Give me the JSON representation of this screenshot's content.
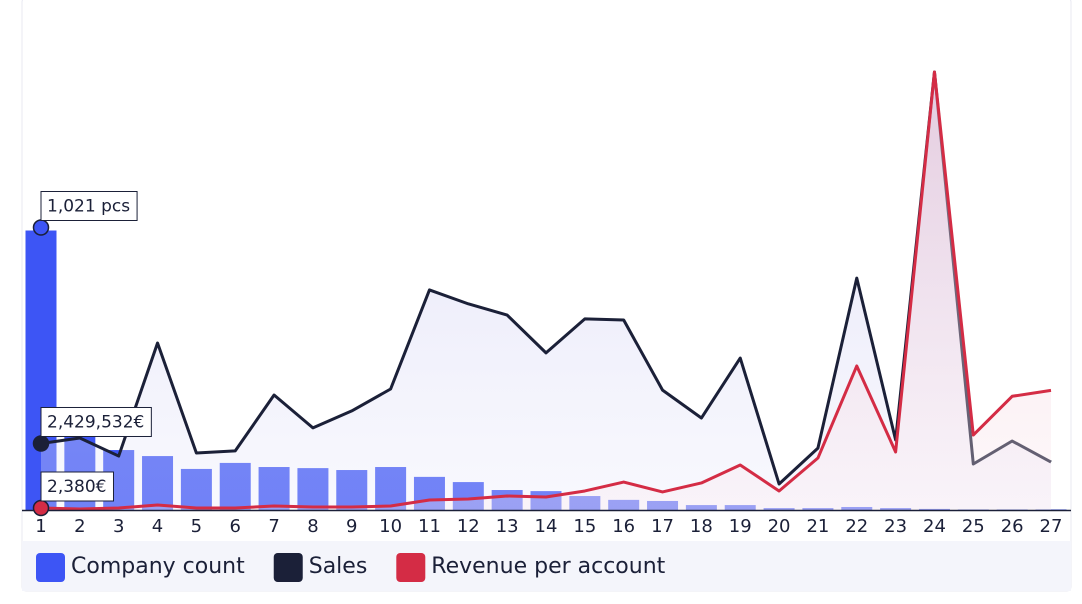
{
  "chart_data": {
    "type": "combo",
    "categories": [
      "1",
      "2",
      "3",
      "4",
      "5",
      "6",
      "7",
      "8",
      "9",
      "10",
      "11",
      "12",
      "13",
      "14",
      "15",
      "16",
      "17",
      "18",
      "19",
      "20",
      "21",
      "22",
      "23",
      "24",
      "25",
      "26",
      "27"
    ],
    "ylim": [
      0,
      1600
    ],
    "y2lim": [
      0,
      16000000
    ],
    "y3lim": [
      0,
      520000
    ],
    "legend": "bottom-left",
    "series": [
      {
        "name": "Company count",
        "type": "bar",
        "axis": "y",
        "color": "#3d55f5",
        "values": [
          1021,
          267,
          219,
          197,
          150,
          172,
          157,
          153,
          146,
          157,
          121,
          102,
          73,
          69,
          51,
          37,
          33,
          18,
          18,
          7,
          7,
          11,
          7,
          4,
          2,
          2,
          2
        ],
        "value_labels": [
          "1,021 pcs",
          null,
          null,
          null,
          null,
          null,
          null,
          null,
          null,
          null,
          null,
          null,
          null,
          null,
          null,
          null,
          null,
          null,
          null,
          null,
          null,
          null,
          null,
          null,
          null,
          null,
          null
        ]
      },
      {
        "name": "Sales",
        "type": "line",
        "axis": "y2",
        "color": "#1b2038",
        "values": [
          2429532,
          2630000,
          1970000,
          6100000,
          2080000,
          2160000,
          4200000,
          3000000,
          3620000,
          4420000,
          8040000,
          7530000,
          7120000,
          5740000,
          6980000,
          6940000,
          4380000,
          3360000,
          5550000,
          950000,
          2260000,
          8470000,
          2560000,
          16000000,
          1680000,
          2520000,
          1750000
        ],
        "value_labels": [
          "2,429,532€",
          null,
          null,
          null,
          null,
          null,
          null,
          null,
          null,
          null,
          null,
          null,
          null,
          null,
          null,
          null,
          null,
          null,
          null,
          null,
          null,
          null,
          null,
          null,
          null,
          null,
          null
        ]
      },
      {
        "name": "Revenue per account",
        "type": "line",
        "axis": "y3",
        "color": "#d42c45",
        "values": [
          2380,
          1200,
          2400,
          5900,
          2400,
          2400,
          4750,
          3560,
          3560,
          4750,
          11900,
          13000,
          16600,
          15400,
          22600,
          33200,
          21400,
          32100,
          53400,
          22600,
          61700,
          171000,
          68900,
          520000,
          89000,
          135000,
          142000
        ],
        "value_labels": [
          "2,380€",
          null,
          null,
          null,
          null,
          null,
          null,
          null,
          null,
          null,
          null,
          null,
          null,
          null,
          null,
          null,
          null,
          null,
          null,
          null,
          null,
          null,
          null,
          null,
          null,
          null,
          null
        ]
      }
    ]
  }
}
